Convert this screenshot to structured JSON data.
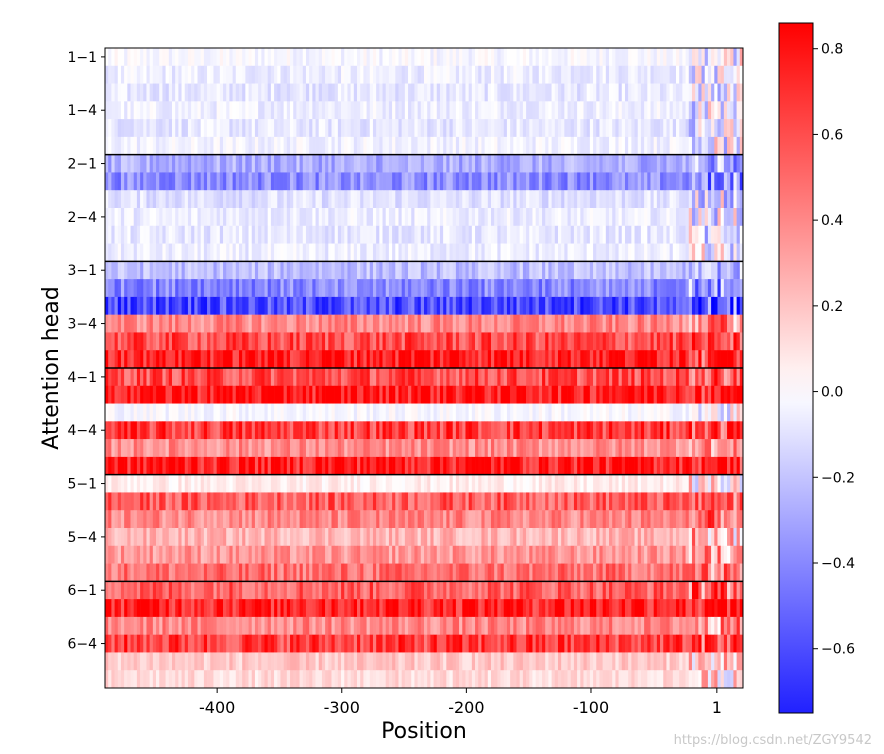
{
  "chart_data": {
    "type": "heatmap",
    "xlabel": "Position",
    "ylabel": "Attention head",
    "x_range": [
      -490,
      22
    ],
    "x_ticks": [
      -400,
      -300,
      -200,
      -100,
      1
    ],
    "x_tick_labels": [
      "-400",
      "-300",
      "-200",
      "-100",
      "1"
    ],
    "row_labels": [
      "1−1",
      "1−4",
      "2−1",
      "2−4",
      "3−1",
      "3−4",
      "4−1",
      "4−4",
      "5−1",
      "5−4",
      "6−1",
      "6−4"
    ],
    "layers": 6,
    "heads_per_layer": 6,
    "colorbar": {
      "colormap": "bwr",
      "range": [
        -0.75,
        0.86
      ],
      "ticks": [
        0.8,
        0.6,
        0.4,
        0.2,
        0.0,
        -0.2,
        -0.4,
        -0.6
      ],
      "tick_labels": [
        "0.8",
        "0.6",
        "0.4",
        "0.2",
        "0.0",
        "−0.2",
        "−0.4",
        "−0.6"
      ]
    },
    "head_mean_values": [
      [
        -0.02,
        -0.06,
        -0.08,
        -0.05,
        -0.08,
        -0.04
      ],
      [
        -0.28,
        -0.38,
        -0.1,
        -0.06,
        -0.08,
        -0.06
      ],
      [
        -0.22,
        -0.4,
        -0.6,
        0.4,
        0.6,
        0.8
      ],
      [
        0.6,
        0.82,
        -0.02,
        0.65,
        0.38,
        0.8
      ],
      [
        0.06,
        0.55,
        0.4,
        0.25,
        0.35,
        0.48
      ],
      [
        0.55,
        0.78,
        0.4,
        0.65,
        0.18,
        0.12
      ]
    ]
  },
  "watermark": "https://blog.csdn.net/ZGY9542"
}
